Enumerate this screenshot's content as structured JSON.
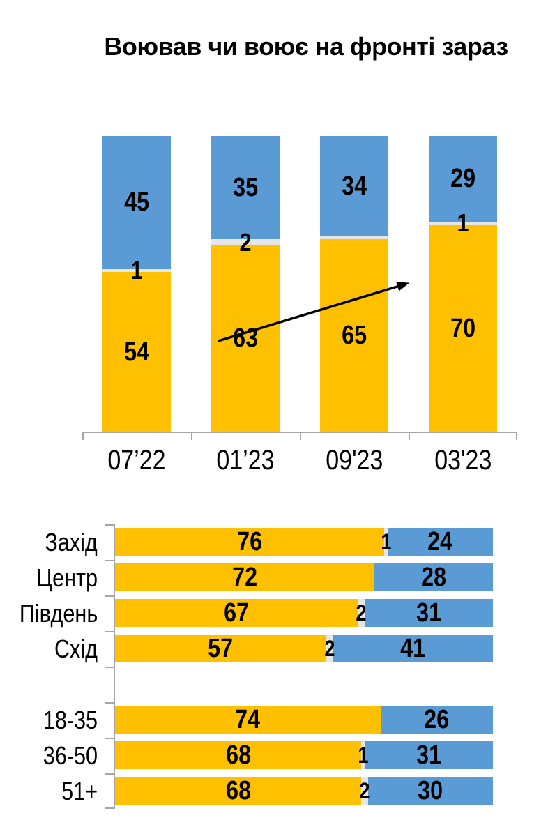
{
  "title": "Воював чи воює на фронті зараз",
  "colors": {
    "yellow_segment": "#FFC000",
    "blue_segment": "#5B9BD5",
    "gap_segment": "#E7E6E6",
    "axis": "#A6A6A6",
    "arrow": "#000000",
    "text": "#000000"
  },
  "chart_data": [
    {
      "type": "bar",
      "subtype": "stacked-vertical-columns",
      "title": "Воював чи воює на фронті зараз",
      "categories": [
        "07’22",
        "01’23",
        "09'23",
        "03'23"
      ],
      "series": [
        {
          "name": "yellow-bottom",
          "color": "#FFC000",
          "values": [
            54,
            63,
            65,
            70
          ],
          "labels": [
            "54",
            "63",
            "65",
            "70"
          ]
        },
        {
          "name": "gray-middle",
          "color": "#E7E6E6",
          "values": [
            1,
            2,
            1,
            1
          ],
          "labels": [
            "1",
            "2",
            "",
            "1"
          ]
        },
        {
          "name": "blue-top",
          "color": "#5B9BD5",
          "values": [
            45,
            35,
            34,
            29
          ],
          "labels": [
            "45",
            "35",
            "34",
            "29"
          ]
        }
      ],
      "ylim": [
        0,
        100
      ],
      "xlabel": "",
      "ylabel": "",
      "grid": false,
      "legend": false,
      "annotations": [
        {
          "type": "arrow",
          "note": "upward trend arrow across columns 2-4"
        }
      ]
    },
    {
      "type": "bar",
      "subtype": "stacked-horizontal-bars",
      "xlim": [
        0,
        100
      ],
      "grid": false,
      "legend": false,
      "rows": [
        {
          "label": "Захід",
          "yellow": 76,
          "yellow_label": "76",
          "mid": 1,
          "mid_label": "1",
          "blue": 24,
          "blue_label": "24",
          "spacer": false
        },
        {
          "label": "Центр",
          "yellow": 72,
          "yellow_label": "72",
          "mid": 0,
          "mid_label": "",
          "blue": 28,
          "blue_label": "28",
          "spacer": false
        },
        {
          "label": "Південь",
          "yellow": 67,
          "yellow_label": "67",
          "mid": 2,
          "mid_label": "2",
          "blue": 31,
          "blue_label": "31",
          "spacer": false
        },
        {
          "label": "Схід",
          "yellow": 57,
          "yellow_label": "57",
          "mid": 2,
          "mid_label": "2",
          "blue": 41,
          "blue_label": "41",
          "spacer": false
        },
        {
          "label": "",
          "spacer": true
        },
        {
          "label": "18-35",
          "yellow": 74,
          "yellow_label": "74",
          "mid": 0,
          "mid_label": "",
          "blue": 26,
          "blue_label": "26",
          "spacer": false
        },
        {
          "label": "36-50",
          "yellow": 68,
          "yellow_label": "68",
          "mid": 1,
          "mid_label": "1",
          "blue": 31,
          "blue_label": "31",
          "spacer": false
        },
        {
          "label": "51+",
          "yellow": 68,
          "yellow_label": "68",
          "mid": 2,
          "mid_label": "2",
          "blue": 30,
          "blue_label": "30",
          "spacer": false
        }
      ]
    }
  ]
}
